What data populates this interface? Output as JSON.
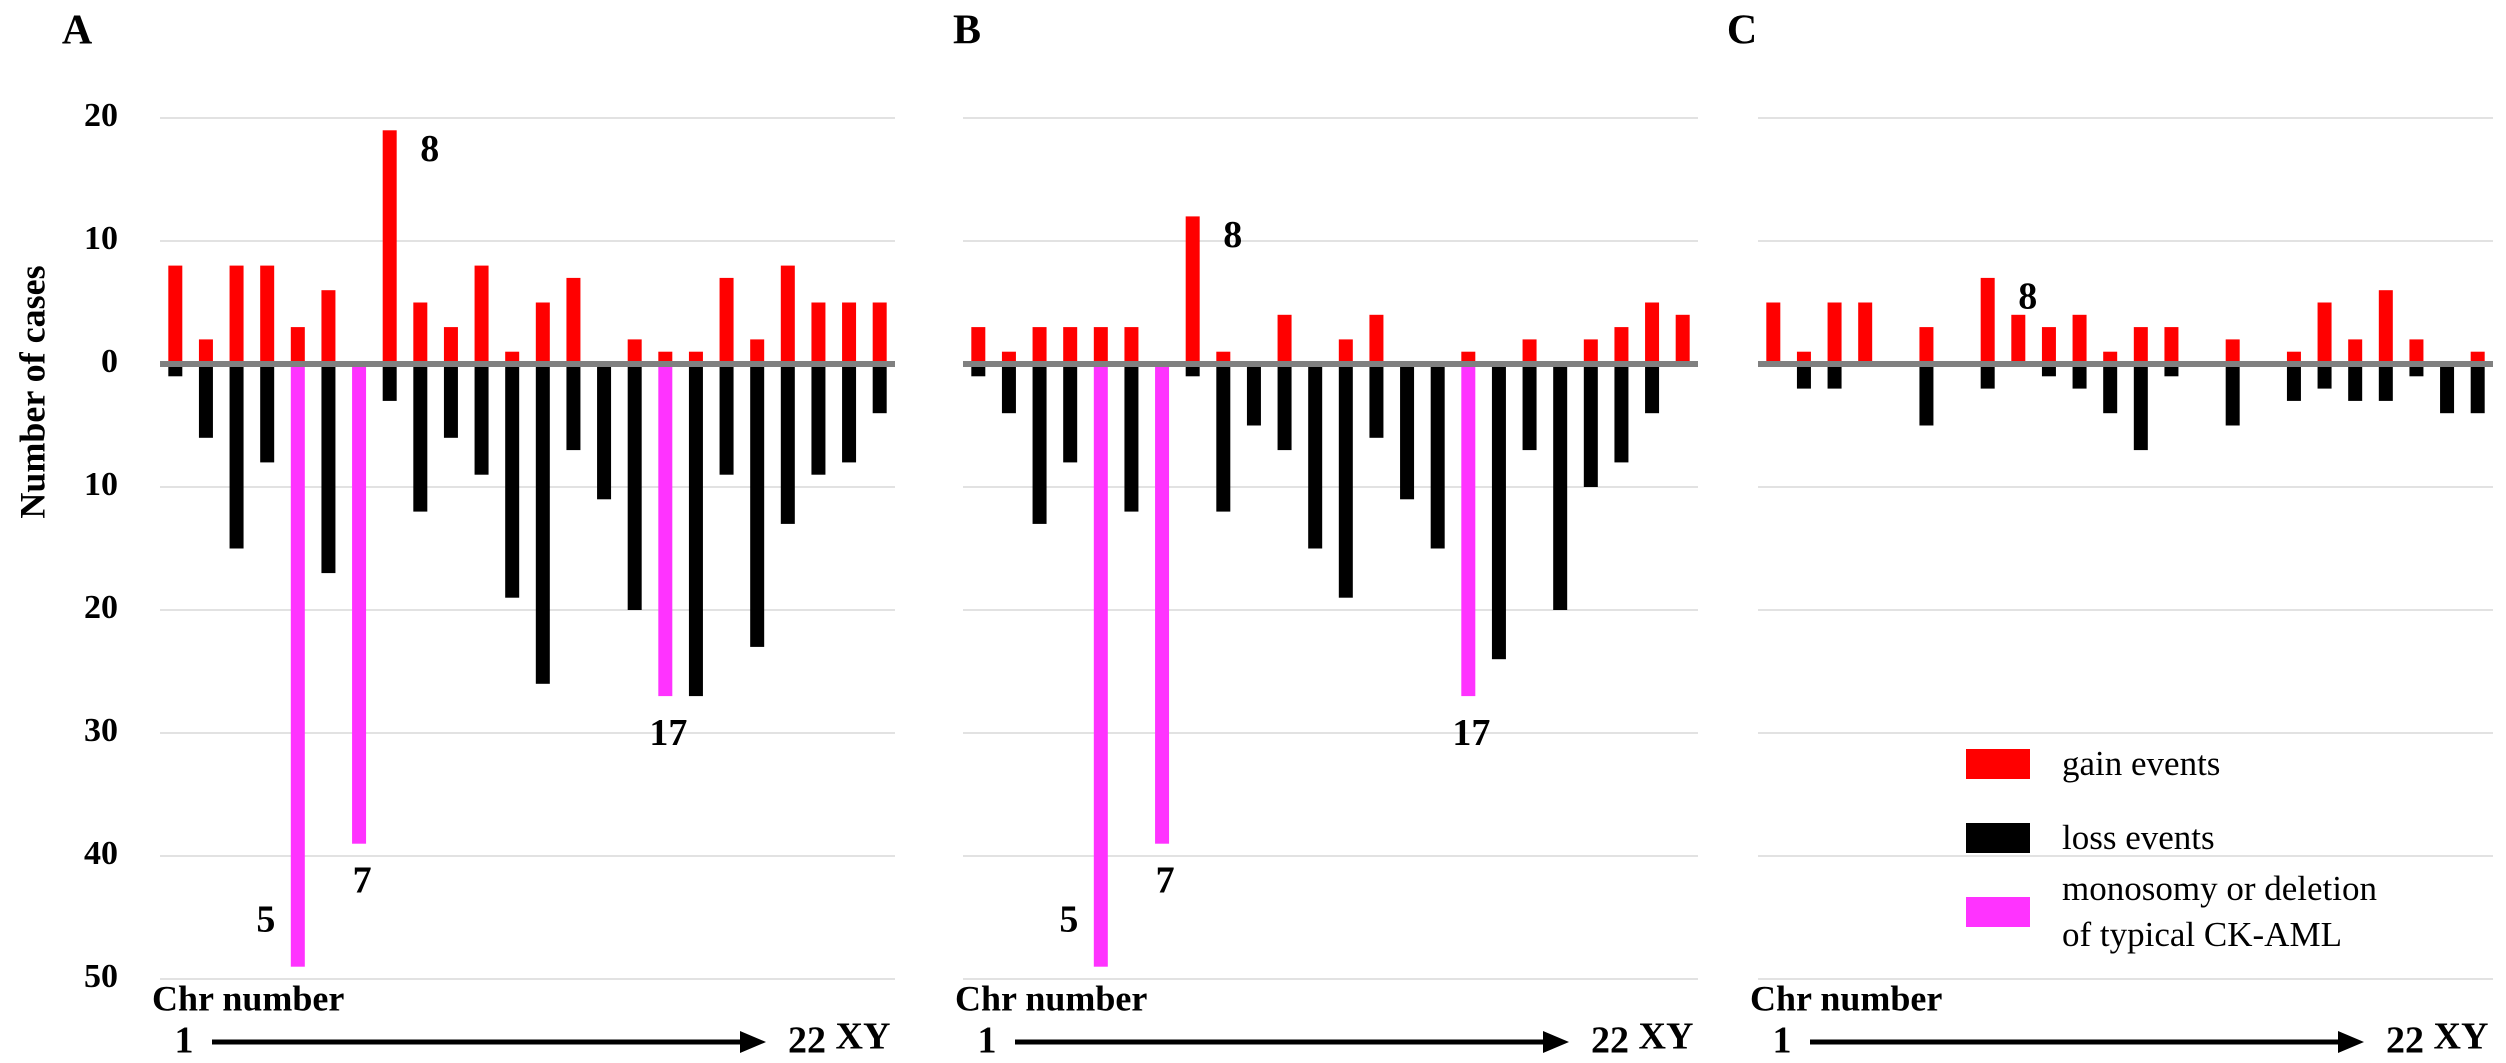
{
  "chart_data": [
    {
      "type": "bar",
      "panel": "A",
      "y_label": "Number of cases",
      "x_label": "Chr number",
      "x_start": "1",
      "x_end": "22",
      "x_end_extra": "XY",
      "ylim": [
        -50,
        20
      ],
      "yticks": [
        {
          "value": -50,
          "label": "50"
        },
        {
          "value": -40,
          "label": "40"
        },
        {
          "value": -30,
          "label": "30"
        },
        {
          "value": -20,
          "label": "20"
        },
        {
          "value": -10,
          "label": "10"
        },
        0,
        10,
        20
      ],
      "series": [
        {
          "color": "#ff0000",
          "values": [
            8,
            2,
            8,
            8,
            3,
            6,
            null,
            19,
            5,
            3,
            8,
            1,
            5,
            7,
            null,
            2,
            1,
            1,
            7,
            2,
            8,
            5,
            5,
            5
          ]
        },
        {
          "color": "#000000",
          "values": [
            -1,
            -6,
            -15,
            -8,
            null,
            -17,
            null,
            -3,
            -12,
            -6,
            -9,
            -19,
            -26,
            -7,
            -11,
            -20,
            null,
            -27,
            -9,
            -23,
            -13,
            -9,
            -8,
            -4
          ]
        },
        {
          "color": "#ff33ff",
          "values": [
            null,
            null,
            null,
            null,
            -49,
            null,
            -39,
            null,
            null,
            null,
            null,
            null,
            null,
            null,
            null,
            null,
            -27,
            null,
            null,
            null,
            null,
            null,
            null,
            null
          ]
        }
      ],
      "annotations": [
        "8",
        "5",
        "7",
        "17"
      ]
    },
    {
      "type": "bar",
      "panel": "B",
      "x_label": "Chr number",
      "x_start": "1",
      "x_end": "22",
      "x_end_extra": "XY",
      "ylim": [
        -50,
        20
      ],
      "ygrid": [
        -50,
        -40,
        -30,
        -20,
        -10,
        0,
        10,
        20
      ],
      "series": [
        {
          "color": "#ff0000",
          "values": [
            3,
            1,
            3,
            3,
            3,
            3,
            null,
            12,
            1,
            null,
            4,
            null,
            2,
            4,
            null,
            null,
            1,
            null,
            2,
            null,
            2,
            3,
            5,
            4
          ]
        },
        {
          "color": "#000000",
          "values": [
            -1,
            -4,
            -13,
            -8,
            null,
            -12,
            null,
            -1,
            -12,
            -5,
            -7,
            -15,
            -19,
            -6,
            -11,
            -15,
            null,
            -24,
            -7,
            -20,
            -10,
            -8,
            -4,
            null
          ]
        },
        {
          "color": "#ff33ff",
          "values": [
            null,
            null,
            null,
            null,
            -49,
            null,
            -39,
            null,
            null,
            null,
            null,
            null,
            null,
            null,
            null,
            null,
            -27,
            null,
            null,
            null,
            null,
            null,
            null,
            null
          ]
        }
      ],
      "annotations": [
        "8",
        "5",
        "7",
        "17"
      ]
    },
    {
      "type": "bar",
      "panel": "C",
      "x_label": "Chr number",
      "x_start": "1",
      "x_end": "22",
      "x_end_extra": "XY",
      "ylim": [
        -50,
        20
      ],
      "ygrid": [
        -50,
        -40,
        -30,
        -20,
        -10,
        0,
        10,
        20
      ],
      "legend": true,
      "series": [
        {
          "name": "gain events",
          "color": "#ff0000",
          "values": [
            5,
            1,
            5,
            5,
            null,
            3,
            null,
            7,
            4,
            3,
            4,
            1,
            3,
            3,
            null,
            2,
            null,
            1,
            5,
            2,
            6,
            2,
            null,
            1
          ]
        },
        {
          "name": "loss events",
          "color": "#000000",
          "values": [
            null,
            -2,
            -2,
            null,
            null,
            -5,
            null,
            -2,
            null,
            -1,
            -2,
            -4,
            -7,
            -1,
            null,
            -5,
            null,
            -3,
            -2,
            -3,
            -3,
            -1,
            -4,
            -4
          ]
        },
        {
          "name": "monosomy or deletion\nof typical CK-AML",
          "color": "#ff33ff",
          "values": [
            null,
            null,
            null,
            null,
            null,
            null,
            null,
            null,
            null,
            null,
            null,
            null,
            null,
            null,
            null,
            null,
            null,
            null,
            null,
            null,
            null,
            null,
            null,
            null
          ]
        }
      ],
      "annotations": [
        "8"
      ]
    }
  ]
}
